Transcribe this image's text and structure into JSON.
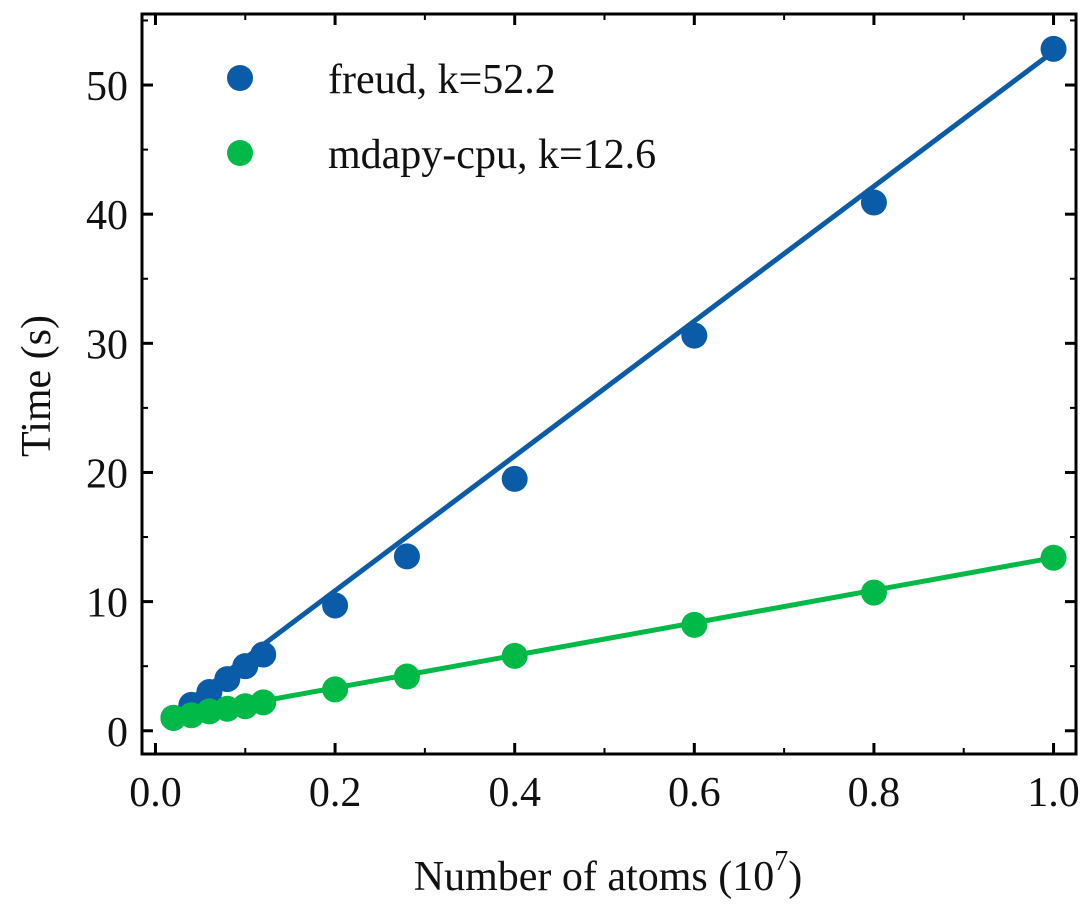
{
  "chart_data": {
    "type": "scatter",
    "title": "",
    "xlabel": "Number of atoms (10",
    "xlabel_superscript": "7",
    "xlabel_suffix": ")",
    "ylabel": "Time (s)",
    "xlim": [
      -0.015,
      1.025
    ],
    "ylim": [
      -1.8,
      55.5
    ],
    "xticks": [
      0.0,
      0.2,
      0.4,
      0.6,
      0.8,
      1.0
    ],
    "xtick_labels": [
      "0.0",
      "0.2",
      "0.4",
      "0.6",
      "0.8",
      "1.0"
    ],
    "yticks": [
      0,
      10,
      20,
      30,
      40,
      50
    ],
    "ytick_labels": [
      "0",
      "10",
      "20",
      "30",
      "40",
      "50"
    ],
    "grid": false,
    "legend_position": "top-left",
    "series": [
      {
        "name": "freud, k=52.2",
        "color": "#0b5ca8",
        "marker": "circle",
        "fit_line": true,
        "slope": 52.2,
        "intercept": 0.4,
        "points": [
          {
            "x": 0.02,
            "y": 1.0
          },
          {
            "x": 0.04,
            "y": 2.0
          },
          {
            "x": 0.06,
            "y": 3.0
          },
          {
            "x": 0.08,
            "y": 4.0
          },
          {
            "x": 0.1,
            "y": 5.0
          },
          {
            "x": 0.12,
            "y": 5.9
          },
          {
            "x": 0.2,
            "y": 9.7
          },
          {
            "x": 0.28,
            "y": 13.5
          },
          {
            "x": 0.4,
            "y": 19.5
          },
          {
            "x": 0.6,
            "y": 30.6
          },
          {
            "x": 0.8,
            "y": 40.9
          },
          {
            "x": 1.0,
            "y": 52.8
          }
        ]
      },
      {
        "name": "mdapy-cpu, k=12.6",
        "color": "#00b946",
        "marker": "circle",
        "fit_line": true,
        "slope": 12.6,
        "intercept": 0.8,
        "points": [
          {
            "x": 0.02,
            "y": 1.0
          },
          {
            "x": 0.04,
            "y": 1.2
          },
          {
            "x": 0.06,
            "y": 1.5
          },
          {
            "x": 0.08,
            "y": 1.7
          },
          {
            "x": 0.1,
            "y": 1.9
          },
          {
            "x": 0.12,
            "y": 2.2
          },
          {
            "x": 0.2,
            "y": 3.2
          },
          {
            "x": 0.28,
            "y": 4.2
          },
          {
            "x": 0.4,
            "y": 5.8
          },
          {
            "x": 0.6,
            "y": 8.2
          },
          {
            "x": 0.8,
            "y": 10.7
          },
          {
            "x": 1.0,
            "y": 13.4
          }
        ]
      }
    ]
  }
}
